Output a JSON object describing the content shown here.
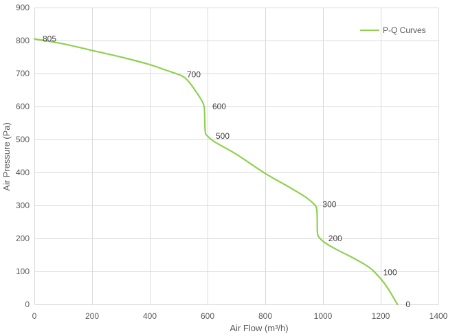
{
  "chart_data": {
    "type": "line",
    "title": "",
    "xlabel": "Air Flow  (m³/h)",
    "ylabel": "Air Pressure  (Pa)",
    "xlim": [
      0,
      1400
    ],
    "ylim": [
      0,
      900
    ],
    "xticks": [
      0,
      200,
      400,
      600,
      800,
      1000,
      1200,
      1400
    ],
    "yticks": [
      0,
      100,
      200,
      300,
      400,
      500,
      600,
      700,
      800,
      900
    ],
    "grid": true,
    "legend_position": "top-right",
    "series": [
      {
        "name": "P-Q Curves",
        "color": "#8fd14f",
        "points": [
          [
            0,
            805
          ],
          [
            100,
            790
          ],
          [
            200,
            770
          ],
          [
            300,
            750
          ],
          [
            400,
            727
          ],
          [
            450,
            712
          ],
          [
            500,
            697
          ],
          [
            520,
            688
          ],
          [
            540,
            670
          ],
          [
            560,
            645
          ],
          [
            580,
            618
          ],
          [
            588,
            600
          ],
          [
            590,
            575
          ],
          [
            592,
            525
          ],
          [
            600,
            510
          ],
          [
            630,
            490
          ],
          [
            700,
            455
          ],
          [
            800,
            397
          ],
          [
            880,
            357
          ],
          [
            940,
            325
          ],
          [
            970,
            303
          ],
          [
            978,
            290
          ],
          [
            980,
            260
          ],
          [
            981,
            215
          ],
          [
            990,
            200
          ],
          [
            1010,
            185
          ],
          [
            1050,
            165
          ],
          [
            1100,
            143
          ],
          [
            1150,
            118
          ],
          [
            1180,
            97
          ],
          [
            1220,
            55
          ],
          [
            1258,
            0
          ]
        ]
      }
    ],
    "annotations": [
      {
        "text": "805",
        "x": 0,
        "y": 805
      },
      {
        "text": "700",
        "x": 500,
        "y": 697
      },
      {
        "text": "600",
        "x": 588,
        "y": 600
      },
      {
        "text": "500",
        "x": 600,
        "y": 510
      },
      {
        "text": "300",
        "x": 970,
        "y": 303
      },
      {
        "text": "200",
        "x": 990,
        "y": 200
      },
      {
        "text": "100",
        "x": 1180,
        "y": 97
      },
      {
        "text": "0",
        "x": 1258,
        "y": 0
      }
    ]
  }
}
